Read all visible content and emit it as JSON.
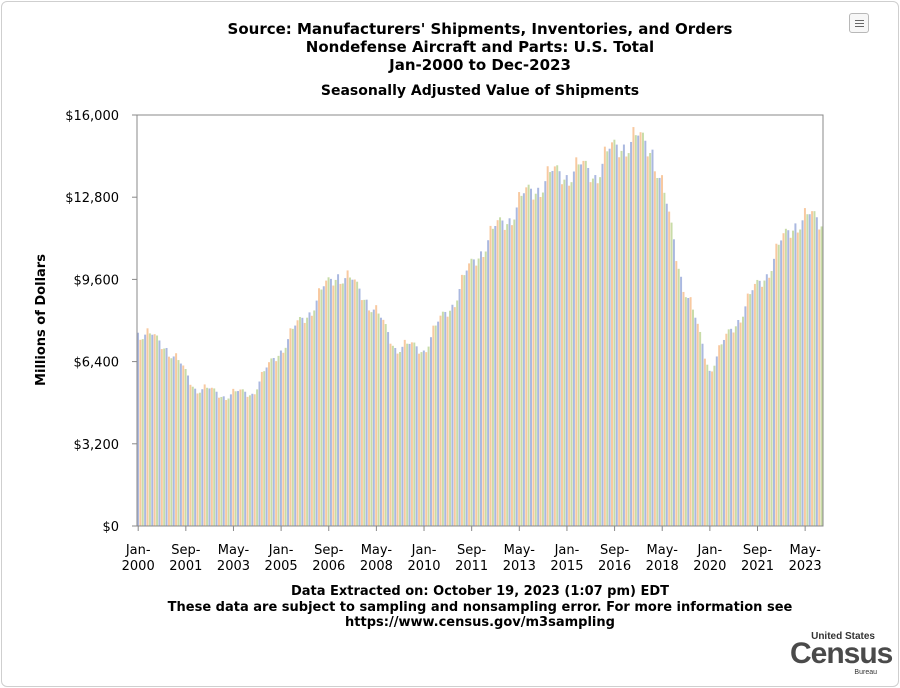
{
  "header": {
    "title_line1": "Source: Manufacturers' Shipments, Inventories, and Orders",
    "title_line2": "Nondefense Aircraft and Parts: U.S. Total",
    "title_line3": "Jan-2000 to Dec-2023",
    "subtitle": "Seasonally Adjusted Value of Shipments"
  },
  "menu": {
    "icon": "hamburger-menu-icon"
  },
  "footer": {
    "line1": "Data Extracted on: October 19, 2023 (1:07 pm) EDT",
    "line2": "These data are subject to sampling and nonsampling error. For more information see",
    "line3": "https://www.census.gov/m3sampling"
  },
  "logo": {
    "top": "United States",
    "main": "Census",
    "bottom": "Bureau"
  },
  "chart_data": {
    "type": "bar",
    "title": "Seasonally Adjusted Value of Shipments",
    "xlabel": "",
    "ylabel": "Millions of Dollars",
    "ylim": [
      0,
      16000
    ],
    "y_ticks": [
      "$0",
      "$3,200",
      "$6,400",
      "$9,600",
      "$12,800",
      "$16,000"
    ],
    "y_tick_values": [
      0,
      3200,
      6400,
      9600,
      12800,
      16000
    ],
    "x_ticks": [
      {
        "line1": "Jan-",
        "line2": "2000",
        "index": 0
      },
      {
        "line1": "Sep-",
        "line2": "2001",
        "index": 20
      },
      {
        "line1": "May-",
        "line2": "2003",
        "index": 40
      },
      {
        "line1": "Jan-",
        "line2": "2005",
        "index": 60
      },
      {
        "line1": "Sep-",
        "line2": "2006",
        "index": 80
      },
      {
        "line1": "May-",
        "line2": "2008",
        "index": 100
      },
      {
        "line1": "Jan-",
        "line2": "2010",
        "index": 120
      },
      {
        "line1": "Sep-",
        "line2": "2011",
        "index": 140
      },
      {
        "line1": "May-",
        "line2": "2013",
        "index": 160
      },
      {
        "line1": "Jan-",
        "line2": "2015",
        "index": 180
      },
      {
        "line1": "Sep-",
        "line2": "2016",
        "index": 200
      },
      {
        "line1": "May-",
        "line2": "2018",
        "index": 220
      },
      {
        "line1": "Jan-",
        "line2": "2020",
        "index": 240
      },
      {
        "line1": "Sep-",
        "line2": "2021",
        "index": 260
      },
      {
        "line1": "May-",
        "line2": "2023",
        "index": 280
      }
    ],
    "start": "Jan-2000",
    "end": "Dec-2023",
    "bar_colors": [
      "#aab8e0",
      "#f8c9a0",
      "#c8dca8"
    ],
    "grid": false,
    "legend": "none",
    "annual_values": [
      7600,
      7000,
      5400,
      5100,
      5200,
      6900,
      8400,
      9900,
      8900,
      7000,
      6900,
      8700,
      10800,
      12100,
      13300,
      13800,
      13800,
      15000,
      14800,
      9800,
      6100,
      8100,
      9900,
      11900
    ],
    "pattern": [
      0.99,
      1.03,
      0.97,
      1.01,
      1.04,
      0.98,
      1.02,
      0.96,
      1.03,
      1.0,
      0.97,
      1.02
    ]
  }
}
